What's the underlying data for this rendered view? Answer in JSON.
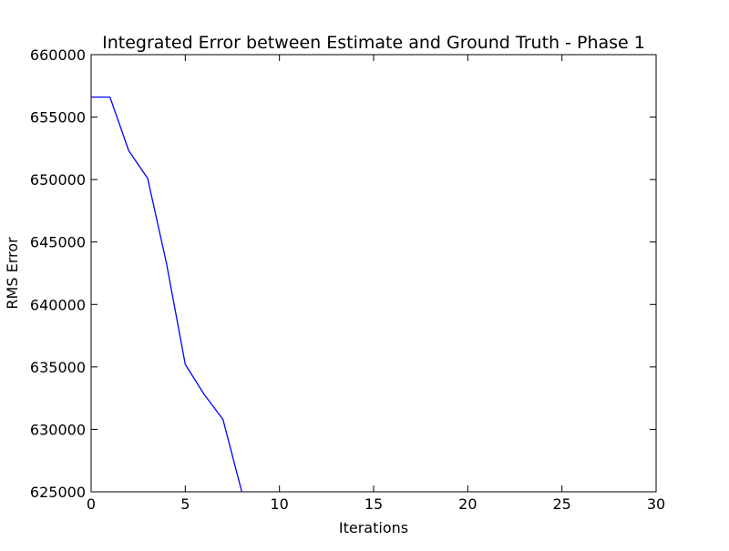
{
  "chart_data": {
    "type": "line",
    "title": "Integrated Error between Estimate and Ground Truth - Phase 1",
    "xlabel": "Iterations",
    "ylabel": "RMS Error",
    "xlim": [
      0,
      30
    ],
    "ylim": [
      625000,
      660000
    ],
    "xticks": [
      0,
      5,
      10,
      15,
      20,
      25,
      30
    ],
    "yticks": [
      625000,
      630000,
      635000,
      640000,
      645000,
      650000,
      655000,
      660000
    ],
    "grid": false,
    "legend": "none",
    "series": [
      {
        "color": "#0000ff",
        "x": [
          0,
          1,
          2,
          3,
          4,
          5,
          6,
          7,
          8
        ],
        "y": [
          656600,
          656600,
          652300,
          650100,
          643300,
          635200,
          632800,
          630800,
          625000
        ]
      }
    ]
  }
}
